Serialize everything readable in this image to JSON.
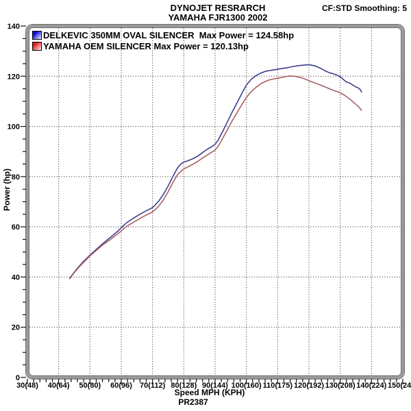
{
  "header": {
    "title_line1": "DYNOJET RESRARCH",
    "title_line2": "YAMAHA FJR1300 2002",
    "smoothing_setting": "CF:STD Smoothing: 5"
  },
  "legend": {
    "items": [
      {
        "label": "DELKEVIC 350MM OVAL SILENCER  Max Power = 124.58hp",
        "swatch": "#0b0bd6"
      },
      {
        "label": "YAMAHA OEM SILENCER Max Power = 120.13hp",
        "swatch": "#e31b1b"
      }
    ]
  },
  "footer": {
    "xlabel": "Speed MPH (KPH)",
    "run_id": "PR2387"
  },
  "chart_data": {
    "type": "line",
    "title": "DYNOJET RESRARCH - YAMAHA FJR1300 2002",
    "xlabel": "Speed MPH (KPH)",
    "ylabel": "Power (hp)",
    "xlim": [
      30,
      150
    ],
    "ylim": [
      0,
      140
    ],
    "grid": true,
    "legend_position": "top-left",
    "x_major_ticks": [
      30,
      40,
      50,
      60,
      70,
      80,
      90,
      100,
      110,
      120,
      130,
      140,
      150
    ],
    "x_tick_labels": [
      "30(48)",
      "40(64)",
      "50(80)",
      "60(96)",
      "70(112)",
      "80(128)",
      "90(144)",
      "100(160)",
      "110(175)",
      "120(192)",
      "130(208)",
      "140(224)",
      "150(240)"
    ],
    "x_minor_step": 2,
    "y_major_ticks": [
      0,
      20,
      40,
      60,
      80,
      100,
      120,
      140
    ],
    "y_minor_step": 5,
    "frame_color": "#9a9a9a",
    "grid_color": "#1a1a1a",
    "series": [
      {
        "name": "DELKEVIC 350MM OVAL SILENCER",
        "max_power_hp": 124.58,
        "color": "#3d3d8f",
        "points": [
          [
            43.5,
            39.5
          ],
          [
            45,
            42
          ],
          [
            46.5,
            44.2
          ],
          [
            48,
            46.3
          ],
          [
            50,
            48.7
          ],
          [
            52,
            51
          ],
          [
            54,
            53.2
          ],
          [
            56,
            55.3
          ],
          [
            57.5,
            56.8
          ],
          [
            59,
            58.4
          ],
          [
            60,
            59.6
          ],
          [
            61,
            60.8
          ],
          [
            62,
            61.9
          ],
          [
            63.5,
            63.1
          ],
          [
            65,
            64.3
          ],
          [
            66.5,
            65.4
          ],
          [
            68,
            66.4
          ],
          [
            69.5,
            67.3
          ],
          [
            70.5,
            68.2
          ],
          [
            72,
            70.3
          ],
          [
            73.5,
            73
          ],
          [
            75,
            76.3
          ],
          [
            76.5,
            80
          ],
          [
            78,
            83.5
          ],
          [
            79,
            85
          ],
          [
            80,
            85.8
          ],
          [
            81.5,
            86.4
          ],
          [
            83,
            87.2
          ],
          [
            84.5,
            88.2
          ],
          [
            86,
            89.6
          ],
          [
            87.5,
            90.9
          ],
          [
            89,
            92
          ],
          [
            90,
            92.9
          ],
          [
            91,
            94.6
          ],
          [
            92.5,
            98.2
          ],
          [
            94,
            102
          ],
          [
            95.5,
            105.8
          ],
          [
            97,
            109.4
          ],
          [
            98.5,
            113
          ],
          [
            100,
            116.5
          ],
          [
            101.5,
            118.7
          ],
          [
            103,
            120.2
          ],
          [
            104.5,
            121.2
          ],
          [
            106,
            121.9
          ],
          [
            107.5,
            122.3
          ],
          [
            109,
            122.6
          ],
          [
            110.5,
            122.9
          ],
          [
            112,
            123.2
          ],
          [
            113.5,
            123.5
          ],
          [
            115,
            123.9
          ],
          [
            116.5,
            124.2
          ],
          [
            118,
            124.4
          ],
          [
            119.5,
            124.55
          ],
          [
            120.5,
            124.5
          ],
          [
            122,
            124.1
          ],
          [
            123.5,
            123.3
          ],
          [
            125,
            122.3
          ],
          [
            126.5,
            121.4
          ],
          [
            127.5,
            121.1
          ],
          [
            129,
            120.4
          ],
          [
            130,
            119.8
          ],
          [
            131,
            118.7
          ],
          [
            132,
            117.7
          ],
          [
            133,
            117.3
          ],
          [
            134,
            116.5
          ],
          [
            135,
            115.7
          ],
          [
            135.8,
            115.3
          ],
          [
            136.4,
            114.7
          ],
          [
            136.8,
            113.7
          ]
        ]
      },
      {
        "name": "YAMAHA OEM SILENCER",
        "max_power_hp": 120.13,
        "color": "#a85f5f",
        "points": [
          [
            43.5,
            39.3
          ],
          [
            45,
            41.8
          ],
          [
            46.5,
            43.9
          ],
          [
            48,
            45.9
          ],
          [
            50,
            48.4
          ],
          [
            52,
            50.6
          ],
          [
            54,
            52.7
          ],
          [
            56,
            54.5
          ],
          [
            57.5,
            55.9
          ],
          [
            59,
            57.3
          ],
          [
            60,
            58.4
          ],
          [
            61,
            59.5
          ],
          [
            62,
            60.4
          ],
          [
            63.5,
            61.5
          ],
          [
            65,
            62.6
          ],
          [
            66.5,
            63.7
          ],
          [
            68,
            64.7
          ],
          [
            69.5,
            65.6
          ],
          [
            70.5,
            66.4
          ],
          [
            72,
            68.3
          ],
          [
            73.5,
            70.8
          ],
          [
            75,
            74
          ],
          [
            76.5,
            77.6
          ],
          [
            78,
            80.8
          ],
          [
            79,
            82
          ],
          [
            80,
            83.1
          ],
          [
            81.5,
            84
          ],
          [
            83,
            85
          ],
          [
            84.5,
            86.1
          ],
          [
            86,
            87.4
          ],
          [
            87.5,
            88.6
          ],
          [
            89,
            89.8
          ],
          [
            90,
            90.6
          ],
          [
            91,
            92.1
          ],
          [
            92.5,
            95.4
          ],
          [
            94,
            98.9
          ],
          [
            95.5,
            102.3
          ],
          [
            97,
            105.5
          ],
          [
            98.5,
            108.6
          ],
          [
            100,
            111.5
          ],
          [
            101.5,
            113.8
          ],
          [
            103,
            115.5
          ],
          [
            104.5,
            116.9
          ],
          [
            106,
            117.9
          ],
          [
            107.5,
            118.6
          ],
          [
            109,
            119
          ],
          [
            110.5,
            119.3
          ],
          [
            112,
            119.7
          ],
          [
            113.5,
            120.05
          ],
          [
            114.5,
            120.1
          ],
          [
            116,
            119.9
          ],
          [
            117.5,
            119.4
          ],
          [
            119,
            118.8
          ],
          [
            120,
            118.2
          ],
          [
            121.5,
            117.5
          ],
          [
            123,
            116.8
          ],
          [
            124.5,
            116.1
          ],
          [
            126,
            115.3
          ],
          [
            127.5,
            114.5
          ],
          [
            129,
            113.9
          ],
          [
            130,
            113.4
          ],
          [
            131.5,
            112.3
          ],
          [
            133,
            111
          ],
          [
            134,
            109.9
          ],
          [
            135,
            108.8
          ],
          [
            135.8,
            107.9
          ],
          [
            136.4,
            107.1
          ],
          [
            136.8,
            106.4
          ]
        ]
      }
    ]
  }
}
